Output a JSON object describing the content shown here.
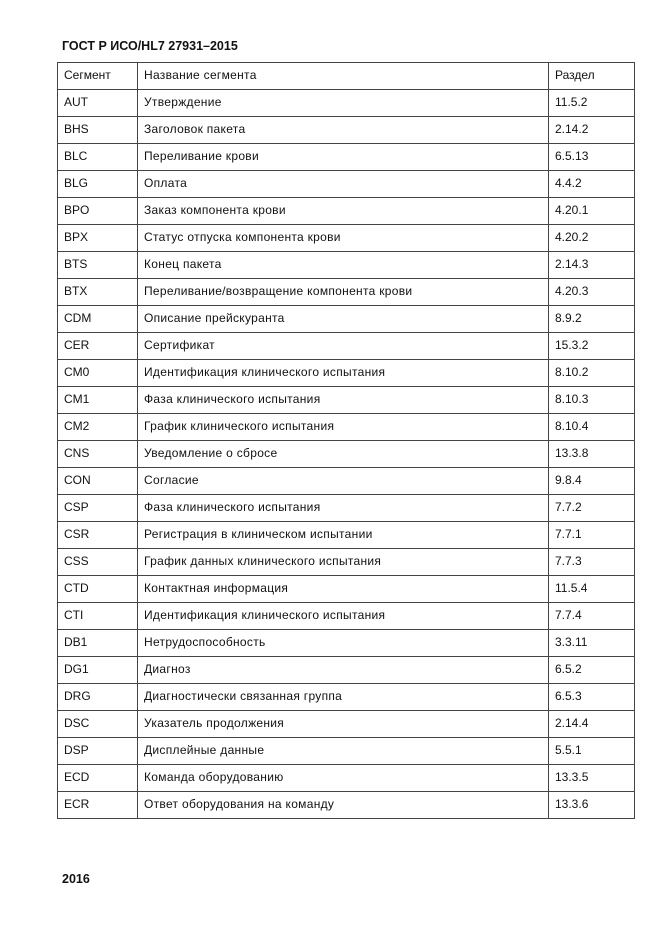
{
  "header": {
    "title": "ГОСТ Р ИСО/HL7 27931–2015"
  },
  "table": {
    "columns": [
      "Сегмент",
      "Название сегмента",
      "Раздел"
    ],
    "rows": [
      [
        "AUT",
        "Утверждение",
        "11.5.2"
      ],
      [
        "BHS",
        "Заголовок пакета",
        "2.14.2"
      ],
      [
        "BLC",
        "Переливание крови",
        "6.5.13"
      ],
      [
        "BLG",
        "Оплата",
        "4.4.2"
      ],
      [
        "BPO",
        "Заказ компонента крови",
        "4.20.1"
      ],
      [
        "BPX",
        "Статус отпуска компонента крови",
        "4.20.2"
      ],
      [
        "BTS",
        "Конец пакета",
        "2.14.3"
      ],
      [
        "BTX",
        "Переливание/возвращение компонента крови",
        "4.20.3"
      ],
      [
        "CDM",
        "Описание прейскуранта",
        "8.9.2"
      ],
      [
        "CER",
        "Сертификат",
        "15.3.2"
      ],
      [
        "CM0",
        "Идентификация клинического испытания",
        "8.10.2"
      ],
      [
        "CM1",
        "Фаза клинического испытания",
        "8.10.3"
      ],
      [
        "CM2",
        "График клинического испытания",
        "8.10.4"
      ],
      [
        "CNS",
        "Уведомление о сбросе",
        "13.3.8"
      ],
      [
        "CON",
        "Согласие",
        "9.8.4"
      ],
      [
        "CSP",
        "Фаза клинического испытания",
        "7.7.2"
      ],
      [
        "CSR",
        "Регистрация в клиническом испытании",
        "7.7.1"
      ],
      [
        "CSS",
        "График данных клинического испытания",
        "7.7.3"
      ],
      [
        "CTD",
        "Контактная информация",
        "11.5.4"
      ],
      [
        "CTI",
        "Идентификация клинического испытания",
        "7.7.4"
      ],
      [
        "DB1",
        "Нетрудоспособность",
        "3.3.11"
      ],
      [
        "DG1",
        "Диагноз",
        "6.5.2"
      ],
      [
        "DRG",
        "Диагностически связанная группа",
        "6.5.3"
      ],
      [
        "DSC",
        "Указатель продолжения",
        "2.14.4"
      ],
      [
        "DSP",
        "Дисплейные данные",
        "5.5.1"
      ],
      [
        "ECD",
        "Команда оборудованию",
        "13.3.5"
      ],
      [
        "ECR",
        "Ответ оборудования на команду",
        "13.3.6"
      ]
    ]
  },
  "footer": {
    "page_number": "2016"
  }
}
